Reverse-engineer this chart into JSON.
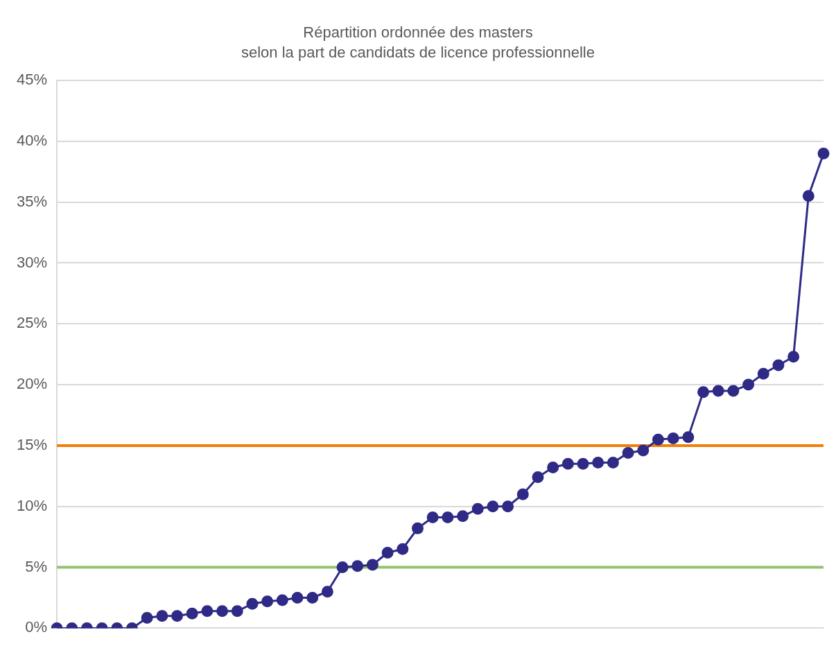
{
  "chart_data": {
    "type": "line",
    "title": "Répartition ordonnée des masters\nselon la part de candidats de licence professionnelle",
    "categories": [
      null,
      null,
      null,
      null,
      null,
      null,
      null,
      null,
      null,
      null,
      null,
      null,
      null,
      null,
      null,
      null,
      null,
      null,
      null,
      null,
      null,
      null,
      null,
      null,
      null,
      null,
      null,
      null,
      null,
      null,
      null,
      null,
      null,
      null,
      null,
      null,
      null,
      null,
      null,
      null,
      null,
      null,
      null,
      null,
      null,
      null,
      null,
      null,
      null,
      null,
      null,
      null
    ],
    "series": [
      {
        "color": "#2e2a86",
        "values": [
          0,
          0,
          0,
          0,
          0,
          0,
          0.85,
          1.0,
          1.0,
          1.2,
          1.4,
          1.4,
          1.4,
          2.0,
          2.2,
          2.3,
          2.5,
          2.5,
          3.0,
          5.0,
          5.1,
          5.2,
          6.2,
          6.5,
          8.2,
          9.1,
          9.1,
          9.2,
          9.8,
          10.0,
          10.0,
          11.0,
          12.4,
          13.2,
          13.5,
          13.5,
          13.6,
          13.6,
          14.4,
          14.6,
          15.5,
          15.6,
          15.7,
          19.4,
          19.5,
          19.5,
          20.0,
          20.9,
          21.6,
          22.3,
          35.5,
          39.0
        ]
      }
    ],
    "ylim": [
      0,
      45
    ],
    "yticks": [
      {
        "value": 0,
        "label": "0%"
      },
      {
        "value": 5,
        "label": "5%"
      },
      {
        "value": 10,
        "label": "10%"
      },
      {
        "value": 15,
        "label": "15%"
      },
      {
        "value": 20,
        "label": "20%"
      },
      {
        "value": 25,
        "label": "25%"
      },
      {
        "value": 30,
        "label": "30%"
      },
      {
        "value": 35,
        "label": "35%"
      },
      {
        "value": 40,
        "label": "40%"
      },
      {
        "value": 45,
        "label": "45%"
      }
    ],
    "ref_lines": [
      {
        "axis": "y",
        "value": 15,
        "color": "#f07f09"
      },
      {
        "axis": "y",
        "value": 5,
        "color": "#92c36e"
      }
    ],
    "grid": "y",
    "legend": false,
    "marker": "circle",
    "line_style": "solid"
  }
}
